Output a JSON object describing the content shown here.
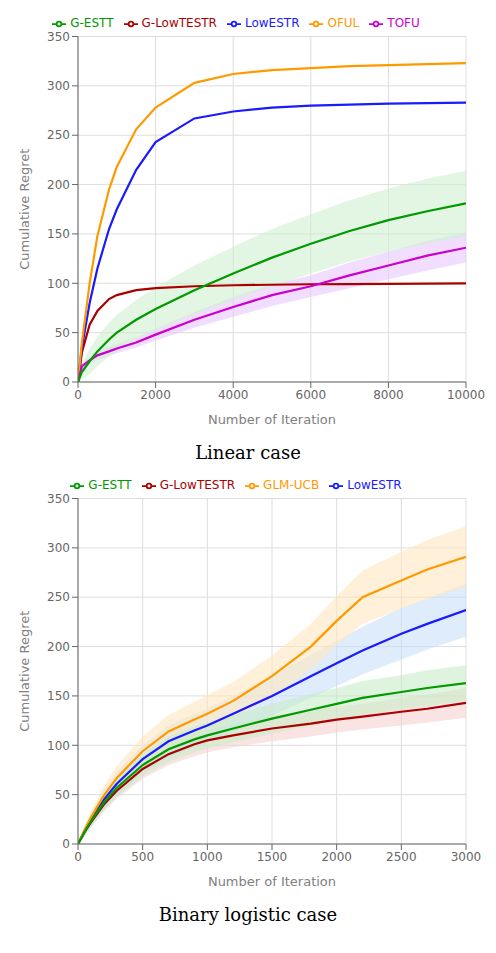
{
  "chart_data": [
    {
      "type": "line",
      "title": "Linear case",
      "xlabel": "Number of Iteration",
      "ylabel": "Cumulative Regret",
      "x": [
        0,
        100,
        300,
        500,
        800,
        1000,
        1500,
        2000,
        3000,
        4000,
        5000,
        6000,
        7000,
        8000,
        9000,
        10000
      ],
      "xlim": [
        0,
        10000
      ],
      "ylim": [
        0,
        350
      ],
      "xticks": [
        0,
        2000,
        4000,
        6000,
        8000,
        10000
      ],
      "yticks": [
        0,
        50,
        100,
        150,
        200,
        250,
        300,
        350
      ],
      "grid": true,
      "legend": "top",
      "series": [
        {
          "name": "G-LowTESTR",
          "color": "#aa0000",
          "values": [
            0,
            30,
            58,
            72,
            84,
            88,
            93,
            95,
            97,
            98,
            98.5,
            99,
            99.2,
            99.5,
            99.7,
            100
          ]
        },
        {
          "name": "LowESTR",
          "color": "#1a1aff",
          "values": [
            0,
            35,
            80,
            115,
            155,
            175,
            215,
            243,
            267,
            274,
            278,
            280,
            281,
            282,
            282.5,
            283
          ]
        },
        {
          "name": "OFUL",
          "color": "#ff9900",
          "values": [
            0,
            40,
            100,
            148,
            195,
            218,
            256,
            278,
            303,
            312,
            316,
            318,
            320,
            321,
            322,
            323
          ]
        },
        {
          "name": "TOFU",
          "color": "#cc00cc",
          "values": [
            0,
            16,
            22,
            27,
            31,
            34,
            40,
            48,
            63,
            76,
            88,
            97,
            108,
            118,
            128,
            136
          ],
          "band": {
            "lower": [
              0,
              13,
              18,
              22,
              26,
              29,
              35,
              42,
              55,
              66,
              77,
              86,
              95,
              104,
              113,
              121
            ],
            "upper": [
              0,
              19,
              26,
              32,
              36,
              39,
              45,
              54,
              71,
              86,
              99,
              108,
              121,
              132,
              143,
              151
            ],
            "color": "#e8c8ff"
          }
        },
        {
          "name": "G-ESTT",
          "color": "#009900",
          "values": [
            0,
            10,
            21,
            31,
            43,
            50,
            63,
            74,
            93,
            110,
            126,
            140,
            153,
            164,
            173,
            181
          ],
          "band": {
            "lower": [
              0,
              2,
              8,
              16,
              26,
              32,
              43,
              52,
              68,
              83,
              97,
              110,
              122,
              132,
              140,
              148
            ],
            "upper": [
              0,
              18,
              34,
              46,
              60,
              68,
              83,
              96,
              118,
              137,
              155,
              170,
              184,
              196,
              206,
              214
            ],
            "color": "#d0f0d0"
          }
        }
      ]
    },
    {
      "type": "line",
      "title": "Binary logistic case",
      "xlabel": "Number of Iteration",
      "ylabel": "Cumulative Regret",
      "x": [
        0,
        50,
        100,
        200,
        300,
        500,
        700,
        900,
        1000,
        1200,
        1500,
        1800,
        2000,
        2200,
        2500,
        2700,
        3000
      ],
      "xlim": [
        0,
        3000
      ],
      "ylim": [
        0,
        350
      ],
      "xticks": [
        0,
        500,
        1000,
        1500,
        2000,
        2500,
        3000
      ],
      "yticks": [
        0,
        50,
        100,
        150,
        200,
        250,
        300,
        350
      ],
      "grid": true,
      "legend": "top",
      "series": [
        {
          "name": "G-LowTESTR",
          "color": "#aa0000",
          "values": [
            0,
            12,
            22,
            40,
            54,
            76,
            91,
            101,
            105,
            110,
            117,
            122,
            126,
            129,
            134,
            137,
            143
          ],
          "band": {
            "lower": [
              0,
              9,
              17,
              33,
              46,
              66,
              80,
              89,
              93,
              98,
              104,
              109,
              113,
              116,
              120,
              123,
              128
            ],
            "upper": [
              0,
              15,
              27,
              47,
              62,
              86,
              102,
              113,
              117,
              122,
              130,
              135,
              139,
              142,
              148,
              151,
              158
            ],
            "color": "#f5d0d0"
          }
        },
        {
          "name": "LowESTR",
          "color": "#1a1aff",
          "values": [
            0,
            13,
            25,
            45,
            61,
            86,
            104,
            115,
            120,
            132,
            150,
            170,
            183,
            196,
            213,
            223,
            237
          ],
          "band": {
            "lower": [
              0,
              8,
              18,
              35,
              49,
              72,
              88,
              98,
              103,
              114,
              130,
              148,
              160,
              172,
              187,
              197,
              210
            ],
            "upper": [
              0,
              18,
              32,
              55,
              73,
              100,
              120,
              132,
              137,
              150,
              170,
              192,
              206,
              220,
              239,
              249,
              264
            ],
            "color": "#c8e0f8"
          }
        },
        {
          "name": "GLM-UCB",
          "color": "#ff9900",
          "values": [
            0,
            14,
            27,
            49,
            67,
            94,
            114,
            126,
            132,
            145,
            170,
            200,
            226,
            250,
            267,
            278,
            291
          ],
          "band": {
            "lower": [
              0,
              10,
              21,
              39,
              55,
              79,
              97,
              108,
              113,
              126,
              149,
              177,
              201,
              223,
              238,
              248,
              260
            ],
            "upper": [
              0,
              18,
              33,
              59,
              79,
              109,
              131,
              144,
              151,
              164,
              191,
              223,
              251,
              277,
              296,
              308,
              322
            ],
            "color": "#ffe8c0"
          }
        },
        {
          "name": "G-ESTT",
          "color": "#009900",
          "values": [
            0,
            12,
            23,
            42,
            57,
            80,
            96,
            106,
            110,
            117,
            127,
            136,
            142,
            148,
            154,
            158,
            163
          ],
          "band": {
            "lower": [
              0,
              8,
              17,
              34,
              48,
              69,
              83,
              93,
              97,
              103,
              112,
              120,
              126,
              131,
              137,
              140,
              145
            ],
            "upper": [
              0,
              16,
              29,
              50,
              66,
              91,
              109,
              119,
              123,
              131,
              142,
              152,
              158,
              165,
              171,
              176,
              181
            ],
            "color": "#c8ecc8"
          }
        }
      ]
    }
  ]
}
